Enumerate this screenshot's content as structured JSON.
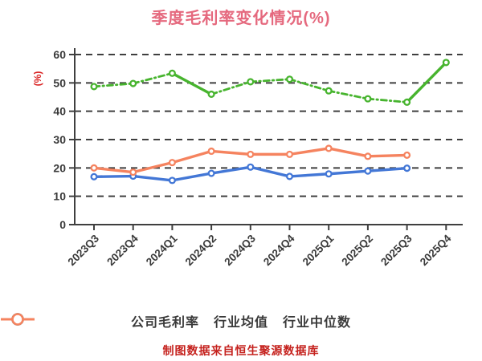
{
  "title": "季度毛利率变化情况(%)",
  "y_axis_label": "(%)",
  "caption": "制图数据来自恒生聚源数据库",
  "colors": {
    "background": "#ffffff",
    "title": "#e5697e",
    "y_label": "#d92121",
    "caption": "#c5221e",
    "text": "#3a3a3a",
    "grid": "#3f3f3f",
    "axis": "#3f3f3f",
    "marker_fill": "#ffffff"
  },
  "chart_data": {
    "type": "line",
    "title": "季度毛利率变化情况(%)",
    "xlabel": "",
    "ylabel": "(%)",
    "ylim": [
      0,
      60
    ],
    "ytick_step": 10,
    "yticks": [
      0,
      10,
      20,
      30,
      40,
      50,
      60
    ],
    "grid": "horizontal-dashed",
    "legend_position": "bottom",
    "categories": [
      "2023Q3",
      "2023Q4",
      "2024Q1",
      "2024Q2",
      "2024Q3",
      "2024Q4",
      "2025Q1",
      "2025Q2",
      "2025Q3",
      "2025Q4"
    ],
    "series": [
      {
        "name": "公司毛利率",
        "color": "#47b42e",
        "line_style": "dashdot",
        "solid_segments": [
          [
            2,
            3
          ],
          [
            8,
            9
          ]
        ],
        "values": [
          48.7,
          49.8,
          53.4,
          46.0,
          50.4,
          51.3,
          47.2,
          44.4,
          43.2,
          57.2
        ]
      },
      {
        "name": "行业均值",
        "color": "#4377d6",
        "line_style": "solid",
        "solid_segments": [],
        "values": [
          16.9,
          17.1,
          15.6,
          18.1,
          20.3,
          17.0,
          17.9,
          18.9,
          19.9,
          null
        ]
      },
      {
        "name": "行业中位数",
        "color": "#f5835f",
        "line_style": "solid",
        "solid_segments": [],
        "values": [
          20.0,
          18.5,
          21.9,
          25.9,
          24.8,
          24.8,
          26.9,
          24.1,
          24.5,
          null
        ]
      }
    ]
  }
}
